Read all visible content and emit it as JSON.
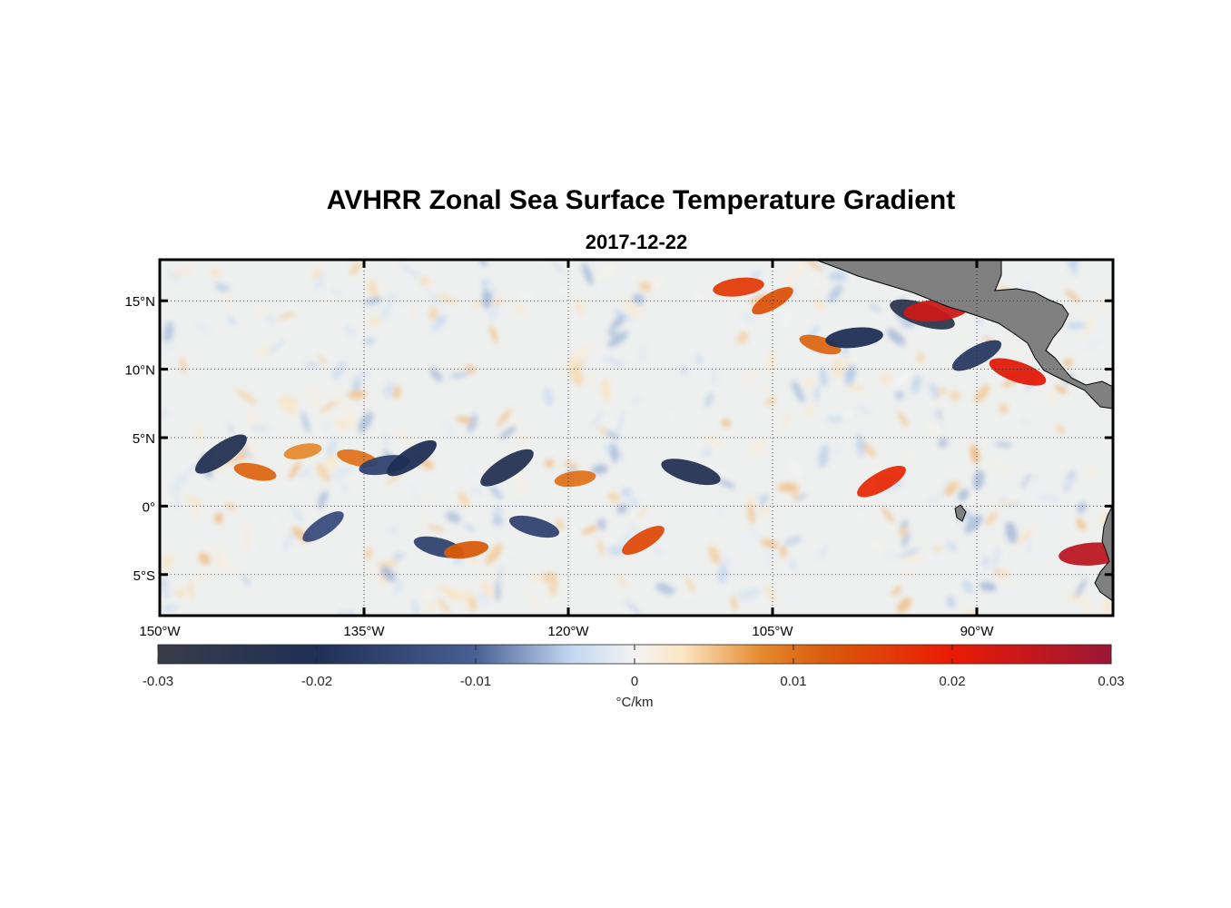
{
  "title": "AVHRR Zonal Sea Surface Temperature Gradient",
  "subtitle": "2017-12-22",
  "chart_data": {
    "type": "heatmap",
    "title": "AVHRR Zonal Sea Surface Temperature Gradient",
    "subtitle": "2017-12-22",
    "variable_unit": "°C/km",
    "xlim_lon": [
      -150,
      -80
    ],
    "ylim_lat": [
      -8,
      18
    ],
    "x_ticks": [
      {
        "value": -150,
        "label": "150°W"
      },
      {
        "value": -135,
        "label": "135°W"
      },
      {
        "value": -120,
        "label": "120°W"
      },
      {
        "value": -105,
        "label": "105°W"
      },
      {
        "value": -90,
        "label": "90°W"
      }
    ],
    "y_ticks": [
      {
        "value": 15,
        "label": "15°N"
      },
      {
        "value": 10,
        "label": "10°N"
      },
      {
        "value": 5,
        "label": "5°N"
      },
      {
        "value": 0,
        "label": "0°"
      },
      {
        "value": -5,
        "label": "5°S"
      }
    ],
    "grid": true,
    "land_color": "#808080",
    "colorbar": {
      "orientation": "horizontal",
      "placement": "bottom",
      "range": [
        -0.03,
        0.03
      ],
      "ticks": [
        -0.03,
        -0.02,
        -0.01,
        0,
        0.01,
        0.02,
        0.03
      ],
      "tick_labels": [
        "-0.03",
        "-0.02",
        "-0.01",
        "0",
        "0.01",
        "0.02",
        "0.03"
      ],
      "label": "°C/km",
      "colors": [
        {
          "value": -0.03,
          "color": "#383d49"
        },
        {
          "value": -0.02,
          "color": "#1f2f56"
        },
        {
          "value": -0.01,
          "color": "#4a6094"
        },
        {
          "value": -0.004,
          "color": "#c2d7f0"
        },
        {
          "value": 0,
          "color": "#f3f3f3"
        },
        {
          "value": 0.003,
          "color": "#fbe6c5"
        },
        {
          "value": 0.008,
          "color": "#e58a2e"
        },
        {
          "value": 0.012,
          "color": "#d95b0c"
        },
        {
          "value": 0.02,
          "color": "#eb1a05"
        },
        {
          "value": 0.03,
          "color": "#9a1736"
        }
      ]
    },
    "features": [
      {
        "lon": -145.5,
        "lat": 3.8,
        "value": -0.022
      },
      {
        "lon": -143.0,
        "lat": 2.5,
        "value": 0.011
      },
      {
        "lon": -139.5,
        "lat": 4.0,
        "value": 0.008
      },
      {
        "lon": -138.0,
        "lat": -1.5,
        "value": -0.014
      },
      {
        "lon": -135.5,
        "lat": 3.5,
        "value": 0.01
      },
      {
        "lon": -133.5,
        "lat": 3.0,
        "value": -0.016
      },
      {
        "lon": -131.5,
        "lat": 3.5,
        "value": -0.02
      },
      {
        "lon": -129.5,
        "lat": -3.0,
        "value": -0.016
      },
      {
        "lon": -127.5,
        "lat": -3.2,
        "value": 0.012
      },
      {
        "lon": -124.5,
        "lat": 2.8,
        "value": -0.022
      },
      {
        "lon": -122.5,
        "lat": -1.5,
        "value": -0.016
      },
      {
        "lon": -119.5,
        "lat": 2.0,
        "value": 0.01
      },
      {
        "lon": -114.5,
        "lat": -2.5,
        "value": 0.014
      },
      {
        "lon": -111.0,
        "lat": 2.5,
        "value": -0.022
      },
      {
        "lon": -107.5,
        "lat": 16.0,
        "value": 0.016
      },
      {
        "lon": -105.0,
        "lat": 15.0,
        "value": 0.013
      },
      {
        "lon": -101.5,
        "lat": 11.8,
        "value": 0.011
      },
      {
        "lon": -99.0,
        "lat": 12.3,
        "value": -0.02
      },
      {
        "lon": -97.0,
        "lat": 1.8,
        "value": 0.018
      },
      {
        "lon": -94.0,
        "lat": 14.0,
        "value": -0.026
      },
      {
        "lon": -93.0,
        "lat": 14.3,
        "value": 0.024
      },
      {
        "lon": -90.0,
        "lat": 11.0,
        "value": -0.018
      },
      {
        "lon": -87.0,
        "lat": 9.8,
        "value": 0.021
      },
      {
        "lon": -81.5,
        "lat": -3.5,
        "value": 0.026
      }
    ]
  }
}
